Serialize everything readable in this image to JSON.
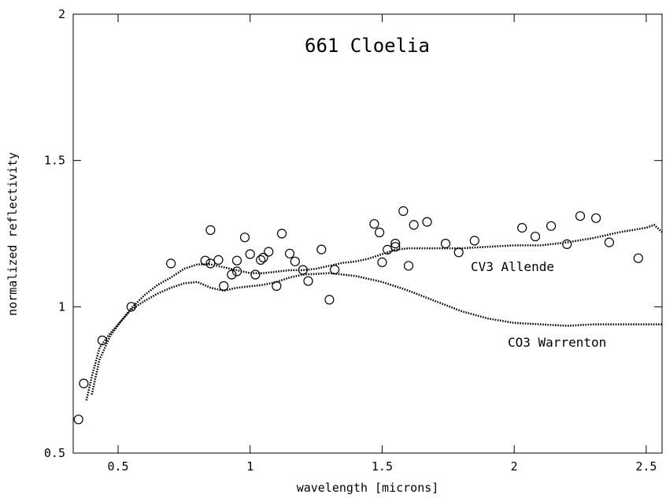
{
  "chart_data": {
    "type": "scatter",
    "title": "661 Cloelia",
    "xlabel": "wavelength [microns]",
    "ylabel": "normalized reflectivity",
    "xlim": [
      0.33,
      2.56
    ],
    "ylim": [
      0.5,
      2.0
    ],
    "x_ticks": [
      {
        "value": 0.5,
        "label": "0.5"
      },
      {
        "value": 1.0,
        "label": "1"
      },
      {
        "value": 1.5,
        "label": "1.5"
      },
      {
        "value": 2.0,
        "label": "2"
      },
      {
        "value": 2.5,
        "label": "2.5"
      }
    ],
    "y_ticks": [
      {
        "value": 0.5,
        "label": "0.5"
      },
      {
        "value": 1.0,
        "label": "1"
      },
      {
        "value": 1.5,
        "label": "1.5"
      },
      {
        "value": 2.0,
        "label": "2"
      }
    ],
    "grid": false,
    "series": [
      {
        "style": "open-circles",
        "points": [
          [
            0.35,
            0.615
          ],
          [
            0.37,
            0.738
          ],
          [
            0.44,
            0.885
          ],
          [
            0.55,
            1.0
          ],
          [
            0.7,
            1.148
          ],
          [
            0.83,
            1.158
          ],
          [
            0.85,
            1.262
          ],
          [
            0.85,
            1.148
          ],
          [
            0.88,
            1.16
          ],
          [
            0.9,
            1.071
          ],
          [
            0.93,
            1.11
          ],
          [
            0.95,
            1.158
          ],
          [
            0.95,
            1.121
          ],
          [
            0.98,
            1.237
          ],
          [
            1.0,
            1.18
          ],
          [
            1.02,
            1.11
          ],
          [
            1.04,
            1.16
          ],
          [
            1.05,
            1.168
          ],
          [
            1.07,
            1.188
          ],
          [
            1.1,
            1.071
          ],
          [
            1.12,
            1.25
          ],
          [
            1.15,
            1.182
          ],
          [
            1.17,
            1.155
          ],
          [
            1.2,
            1.126
          ],
          [
            1.22,
            1.088
          ],
          [
            1.27,
            1.196
          ],
          [
            1.3,
            1.024
          ],
          [
            1.32,
            1.127
          ],
          [
            1.47,
            1.283
          ],
          [
            1.49,
            1.254
          ],
          [
            1.5,
            1.152
          ],
          [
            1.52,
            1.195
          ],
          [
            1.55,
            1.205
          ],
          [
            1.55,
            1.216
          ],
          [
            1.58,
            1.327
          ],
          [
            1.6,
            1.14
          ],
          [
            1.62,
            1.28
          ],
          [
            1.67,
            1.29
          ],
          [
            1.74,
            1.216
          ],
          [
            1.79,
            1.186
          ],
          [
            1.85,
            1.226
          ],
          [
            2.03,
            1.27
          ],
          [
            2.08,
            1.24
          ],
          [
            2.14,
            1.276
          ],
          [
            2.2,
            1.214
          ],
          [
            2.25,
            1.31
          ],
          [
            2.31,
            1.303
          ],
          [
            2.36,
            1.22
          ],
          [
            2.47,
            1.166
          ]
        ]
      },
      {
        "name": "CV3 Allende",
        "style": "dotted-line",
        "points": [
          [
            0.38,
            0.68
          ],
          [
            0.4,
            0.76
          ],
          [
            0.43,
            0.86
          ],
          [
            0.47,
            0.91
          ],
          [
            0.51,
            0.95
          ],
          [
            0.55,
            0.995
          ],
          [
            0.6,
            1.04
          ],
          [
            0.65,
            1.075
          ],
          [
            0.7,
            1.1
          ],
          [
            0.75,
            1.13
          ],
          [
            0.8,
            1.145
          ],
          [
            0.85,
            1.145
          ],
          [
            0.9,
            1.135
          ],
          [
            0.95,
            1.125
          ],
          [
            1.0,
            1.115
          ],
          [
            1.05,
            1.115
          ],
          [
            1.1,
            1.12
          ],
          [
            1.15,
            1.125
          ],
          [
            1.2,
            1.125
          ],
          [
            1.25,
            1.13
          ],
          [
            1.3,
            1.14
          ],
          [
            1.35,
            1.15
          ],
          [
            1.4,
            1.155
          ],
          [
            1.45,
            1.165
          ],
          [
            1.5,
            1.18
          ],
          [
            1.55,
            1.195
          ],
          [
            1.6,
            1.2
          ],
          [
            1.7,
            1.2
          ],
          [
            1.8,
            1.2
          ],
          [
            1.9,
            1.205
          ],
          [
            2.0,
            1.21
          ],
          [
            2.1,
            1.21
          ],
          [
            2.2,
            1.22
          ],
          [
            2.3,
            1.235
          ],
          [
            2.4,
            1.255
          ],
          [
            2.5,
            1.27
          ],
          [
            2.53,
            1.28
          ],
          [
            2.56,
            1.255
          ]
        ]
      },
      {
        "name": "CO3 Warrenton",
        "style": "dotted-line",
        "points": [
          [
            0.4,
            0.7
          ],
          [
            0.43,
            0.82
          ],
          [
            0.47,
            0.9
          ],
          [
            0.51,
            0.95
          ],
          [
            0.55,
            0.99
          ],
          [
            0.6,
            1.02
          ],
          [
            0.65,
            1.045
          ],
          [
            0.7,
            1.065
          ],
          [
            0.75,
            1.08
          ],
          [
            0.8,
            1.085
          ],
          [
            0.85,
            1.065
          ],
          [
            0.9,
            1.055
          ],
          [
            0.95,
            1.065
          ],
          [
            1.0,
            1.07
          ],
          [
            1.05,
            1.075
          ],
          [
            1.1,
            1.085
          ],
          [
            1.15,
            1.1
          ],
          [
            1.2,
            1.11
          ],
          [
            1.3,
            1.115
          ],
          [
            1.4,
            1.105
          ],
          [
            1.5,
            1.085
          ],
          [
            1.6,
            1.055
          ],
          [
            1.7,
            1.02
          ],
          [
            1.8,
            0.985
          ],
          [
            1.9,
            0.96
          ],
          [
            2.0,
            0.945
          ],
          [
            2.1,
            0.94
          ],
          [
            2.2,
            0.935
          ],
          [
            2.3,
            0.94
          ],
          [
            2.4,
            0.94
          ],
          [
            2.5,
            0.94
          ],
          [
            2.56,
            0.94
          ]
        ]
      }
    ]
  }
}
